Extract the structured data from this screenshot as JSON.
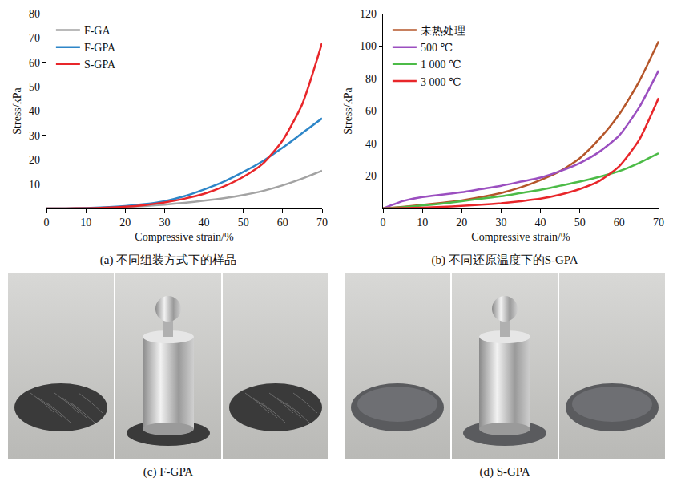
{
  "chart_data": [
    {
      "type": "line",
      "title": "(a) 不同组装方式下的样品",
      "x_label": "Compressive strain/%",
      "y_label": "Stress/kPa",
      "x": [
        0,
        5,
        10,
        15,
        20,
        25,
        30,
        35,
        40,
        45,
        50,
        55,
        60,
        65,
        70
      ],
      "series": [
        {
          "name": "F-GA",
          "color": "#a3a3a3",
          "line_style": "solid",
          "values": [
            0,
            0,
            0.1,
            0.3,
            0.6,
            1.0,
            1.6,
            2.3,
            3.2,
            4.2,
            5.5,
            7.2,
            9.5,
            12.3,
            15.5
          ]
        },
        {
          "name": "F-GPA",
          "color": "#2e86c8",
          "line_style": "solid",
          "values": [
            0,
            0,
            0.2,
            0.5,
            1.0,
            1.8,
            3.0,
            5.0,
            7.8,
            11.0,
            15.0,
            19.5,
            25.0,
            31.0,
            37.0
          ]
        },
        {
          "name": "S-GPA",
          "color": "#e8262a",
          "line_style": "solid",
          "values": [
            0,
            0,
            0.1,
            0.3,
            0.7,
            1.4,
            2.5,
            4.0,
            6.0,
            9.0,
            13.0,
            18.5,
            28.0,
            43.0,
            68.0
          ]
        }
      ],
      "xlim": [
        0,
        70
      ],
      "xticks": [
        0,
        10,
        20,
        30,
        40,
        50,
        60,
        70
      ],
      "ylim": [
        0,
        80
      ],
      "yticks": [
        10,
        20,
        30,
        40,
        50,
        60,
        70,
        80
      ],
      "grid": false,
      "legend": "top-left"
    },
    {
      "type": "line",
      "title": "(b) 不同还原温度下的S-GPA",
      "x_label": "Compressive strain/%",
      "y_label": "Stress/kPa",
      "x": [
        0,
        5,
        10,
        15,
        20,
        25,
        30,
        35,
        40,
        45,
        50,
        55,
        60,
        65,
        70
      ],
      "series": [
        {
          "name": "未热处理",
          "color": "#b5562a",
          "line_style": "solid",
          "values": [
            0,
            1.0,
            2.2,
            3.5,
            5.0,
            7.0,
            9.5,
            13,
            17.5,
            23,
            31,
            43,
            58,
            78,
            103
          ]
        },
        {
          "name": "500 ℃",
          "color": "#9b4fc0",
          "line_style": "solid",
          "values": [
            0,
            4.5,
            7.0,
            8.5,
            10,
            12,
            14,
            16.5,
            19,
            23,
            28,
            35,
            45,
            62,
            85
          ]
        },
        {
          "name": "1 000 ℃",
          "color": "#4cbb47",
          "line_style": "solid",
          "values": [
            0,
            0.8,
            1.8,
            3.0,
            4.5,
            6.0,
            7.5,
            9.5,
            11.5,
            14,
            16.5,
            19.5,
            23,
            28,
            34
          ]
        },
        {
          "name": "3 000 ℃",
          "color": "#e8262a",
          "line_style": "solid",
          "values": [
            0,
            0.2,
            0.5,
            1.0,
            1.6,
            2.3,
            3.2,
            4.5,
            6,
            8.5,
            12,
            17,
            26,
            42,
            68
          ]
        }
      ],
      "xlim": [
        0,
        70
      ],
      "xticks": [
        0,
        10,
        20,
        30,
        40,
        50,
        60,
        70
      ],
      "ylim": [
        0,
        120
      ],
      "yticks": [
        20,
        40,
        60,
        80,
        100,
        120
      ],
      "grid": false,
      "legend": "top-left"
    }
  ],
  "photos": [
    {
      "caption": "(c) F-GPA"
    },
    {
      "caption": "(d) S-GPA"
    }
  ]
}
